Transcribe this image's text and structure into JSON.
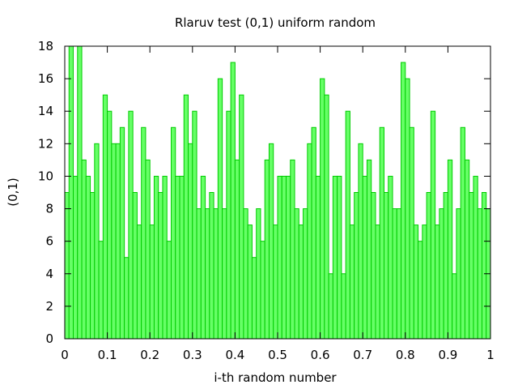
{
  "chart_data": {
    "type": "bar",
    "title": "Rlaruv test (0,1) uniform random",
    "xlabel": "i-th random number",
    "ylabel": "(0,1)",
    "xlim": [
      0,
      1
    ],
    "ylim": [
      0,
      18
    ],
    "x_ticks": [
      "0",
      "0.1",
      "0.2",
      "0.3",
      "0.4",
      "0.5",
      "0.6",
      "0.7",
      "0.8",
      "0.9",
      "1"
    ],
    "y_ticks": [
      "0",
      "2",
      "4",
      "6",
      "8",
      "10",
      "12",
      "14",
      "16",
      "18"
    ],
    "bin_width": 0.01,
    "grid": false,
    "legend": "none",
    "colors": {
      "fill": "#66ff66",
      "stroke": "#00cc00"
    },
    "values": [
      9,
      18,
      10,
      18,
      11,
      10,
      9,
      12,
      6,
      15,
      14,
      12,
      12,
      13,
      5,
      14,
      9,
      7,
      13,
      11,
      7,
      10,
      9,
      10,
      6,
      13,
      10,
      10,
      15,
      12,
      14,
      8,
      10,
      8,
      9,
      8,
      16,
      8,
      14,
      17,
      11,
      15,
      8,
      7,
      5,
      8,
      6,
      11,
      12,
      7,
      10,
      10,
      10,
      11,
      8,
      7,
      8,
      12,
      13,
      10,
      16,
      15,
      4,
      10,
      10,
      4,
      14,
      7,
      9,
      12,
      10,
      11,
      9,
      7,
      13,
      9,
      10,
      8,
      8,
      17,
      16,
      13,
      7,
      6,
      7,
      9,
      14,
      7,
      8,
      9,
      11,
      4,
      8,
      13,
      11,
      9,
      10,
      8,
      9,
      8
    ]
  }
}
